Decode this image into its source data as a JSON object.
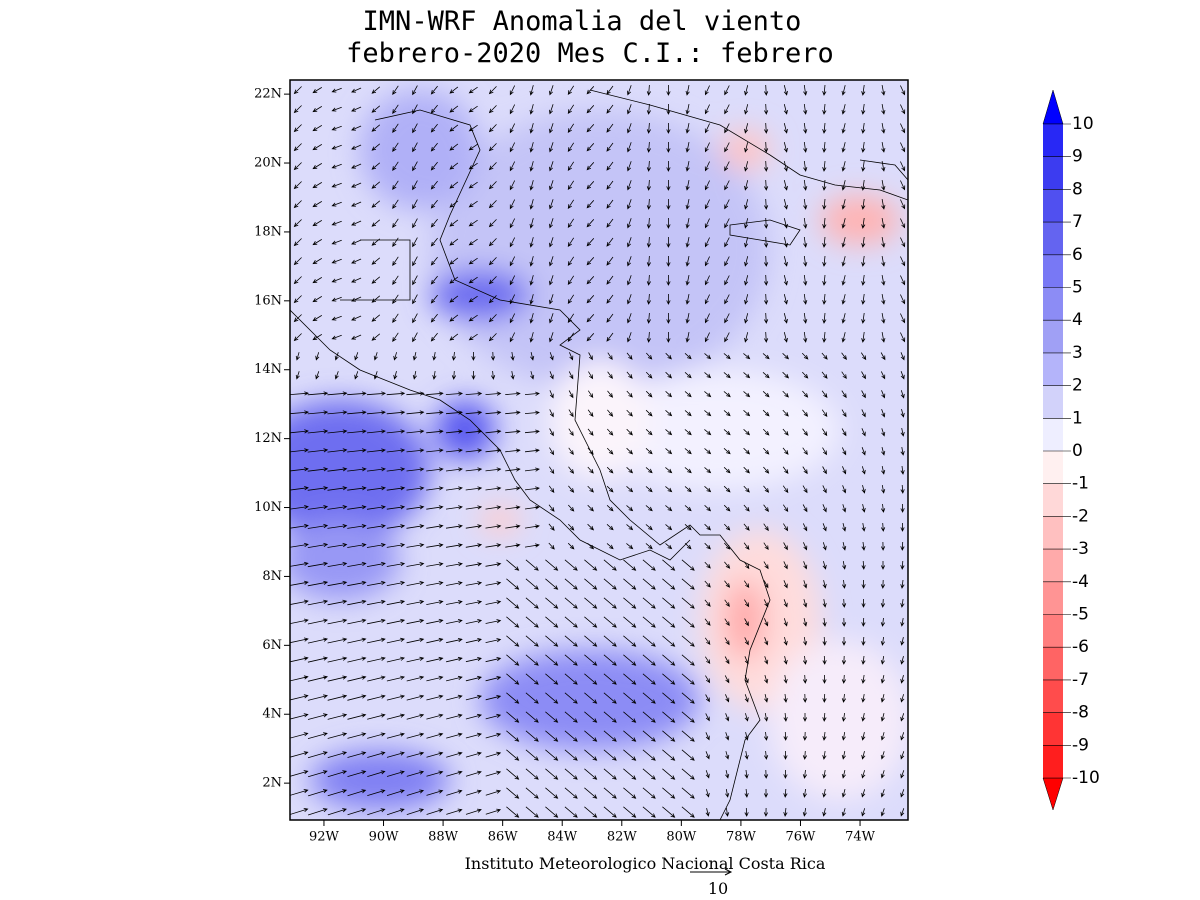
{
  "header": {
    "title": [
      "IMN-WRF Anomalia del viento",
      "febrero-2020 Mes C.I.: febrero"
    ]
  },
  "map": {
    "xlim": [
      -93.14,
      -72.39
    ],
    "ylim": [
      0.93,
      22.41
    ],
    "xticks": [
      {
        "value": -92,
        "label": "92W"
      },
      {
        "value": -90,
        "label": "90W"
      },
      {
        "value": -88,
        "label": "88W"
      },
      {
        "value": -86,
        "label": "86W"
      },
      {
        "value": -84,
        "label": "84W"
      },
      {
        "value": -82,
        "label": "82W"
      },
      {
        "value": -80,
        "label": "80W"
      },
      {
        "value": -78,
        "label": "78W"
      },
      {
        "value": -76,
        "label": "76W"
      },
      {
        "value": -74,
        "label": "74W"
      }
    ],
    "yticks": [
      {
        "value": 2,
        "label": "2N"
      },
      {
        "value": 4,
        "label": "4N"
      },
      {
        "value": 6,
        "label": "6N"
      },
      {
        "value": 8,
        "label": "8N"
      },
      {
        "value": 10,
        "label": "10N"
      },
      {
        "value": 12,
        "label": "12N"
      },
      {
        "value": 14,
        "label": "14N"
      },
      {
        "value": 16,
        "label": "16N"
      },
      {
        "value": 18,
        "label": "18N"
      },
      {
        "value": 20,
        "label": "20N"
      },
      {
        "value": 22,
        "label": "22N"
      }
    ]
  },
  "colorbar": {
    "ticks": [
      10,
      9,
      8,
      7,
      6,
      5,
      4,
      3,
      2,
      1,
      0,
      -1,
      -2,
      -3,
      -4,
      -5,
      -6,
      -7,
      -8,
      -9,
      -10
    ],
    "colors": [
      "#2828f5",
      "#3c3cf0",
      "#5050f0",
      "#6464f0",
      "#7878f5",
      "#8c8cf5",
      "#a0a0f5",
      "#b4b4fa",
      "#d2d2fa",
      "#eeeeff",
      "#fff0f0",
      "#ffd8d8",
      "#ffc0c0",
      "#ffaaaa",
      "#ff9494",
      "#ff7e7e",
      "#ff6464",
      "#ff4c4c",
      "#ff3434",
      "#ff1e1e"
    ],
    "over_color": "#0000ff",
    "under_color": "#ff0000"
  },
  "footer": {
    "text": "Instituto Meteorologico Nacional Costa Rica",
    "reference_vector": 10
  }
}
